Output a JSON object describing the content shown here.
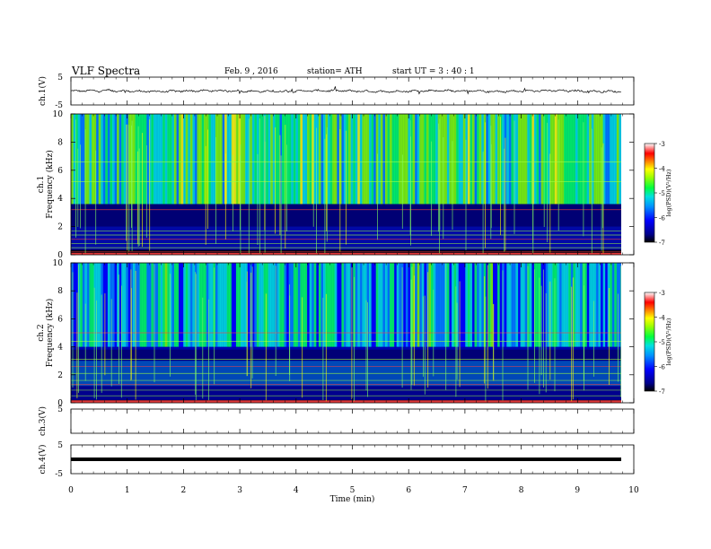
{
  "header": {
    "title": "VLF  Spectra",
    "date": "Feb. 9  , 2016",
    "station": "station= ATH",
    "start": "start  UT  =   3  : 40 : 1"
  },
  "chart_data": [
    {
      "type": "line",
      "panel": "ch1-waveform",
      "ylabel": "ch.1(V)",
      "yticks": [
        "5",
        "-5"
      ],
      "ylim": [
        -5,
        5
      ],
      "xlim": [
        0,
        10
      ],
      "trace_extent_min": [
        0,
        9.8
      ],
      "description_baseline_volts": 0.0
    },
    {
      "type": "heatmap",
      "panel": "ch1-spectrogram",
      "ylabel": "ch.1\nFrequency (kHz)",
      "ylabel_lines": [
        "ch.1",
        "Frequency  (kHz)"
      ],
      "yticks": [
        "0",
        "2",
        "4",
        "6",
        "8",
        "10"
      ],
      "ylim": [
        0,
        10
      ],
      "xlim": [
        0,
        9.8
      ],
      "colorbar": {
        "label": "log(PSD)(V²/Hz)",
        "ticks": [
          "-3",
          "-4",
          "-5",
          "-6",
          "-7"
        ],
        "range": [
          -7,
          -3
        ]
      },
      "bands_khz": {
        "dark_low": [
          0.0,
          0.35
        ],
        "mixed_low": [
          0.35,
          2.0
        ],
        "dark_mid": [
          2.0,
          3.6
        ],
        "bright_high": [
          3.6,
          10.0
        ]
      }
    },
    {
      "type": "heatmap",
      "panel": "ch2-spectrogram",
      "ylabel_lines": [
        "ch.2",
        "Frequency  (kHz)"
      ],
      "yticks": [
        "0",
        "2",
        "4",
        "6",
        "8",
        "10"
      ],
      "ylim": [
        0,
        10
      ],
      "xlim": [
        0,
        9.8
      ],
      "colorbar": {
        "label": "log(PSD)(V²/Hz)",
        "ticks": [
          "-3",
          "-4",
          "-5",
          "-6",
          "-7"
        ],
        "range": [
          -7,
          -3
        ]
      }
    },
    {
      "type": "line",
      "panel": "ch3-waveform",
      "ylabel": "ch.3(V)",
      "yticks": [
        "5"
      ],
      "ylim": [
        -5,
        5
      ],
      "xlim": [
        0,
        10
      ]
    },
    {
      "type": "line",
      "panel": "ch4-waveform",
      "ylabel": "ch.4(V)",
      "yticks": [
        "5",
        "-5"
      ],
      "ylim": [
        -5,
        5
      ],
      "xlim": [
        0,
        9.8
      ],
      "baseline_volts": 0.0
    }
  ],
  "xaxis": {
    "label": "Time  (min)",
    "ticks": [
      "0",
      "1",
      "2",
      "3",
      "4",
      "5",
      "6",
      "7",
      "8",
      "9",
      "10"
    ],
    "range": [
      0,
      10
    ]
  },
  "colors": {
    "cmap": [
      "#000000",
      "#0000a0",
      "#0000ff",
      "#0080ff",
      "#00e0e0",
      "#00ff60",
      "#80ff00",
      "#ffff00",
      "#ff8000",
      "#ff0000",
      "#ff8080",
      "#ffffff"
    ]
  }
}
